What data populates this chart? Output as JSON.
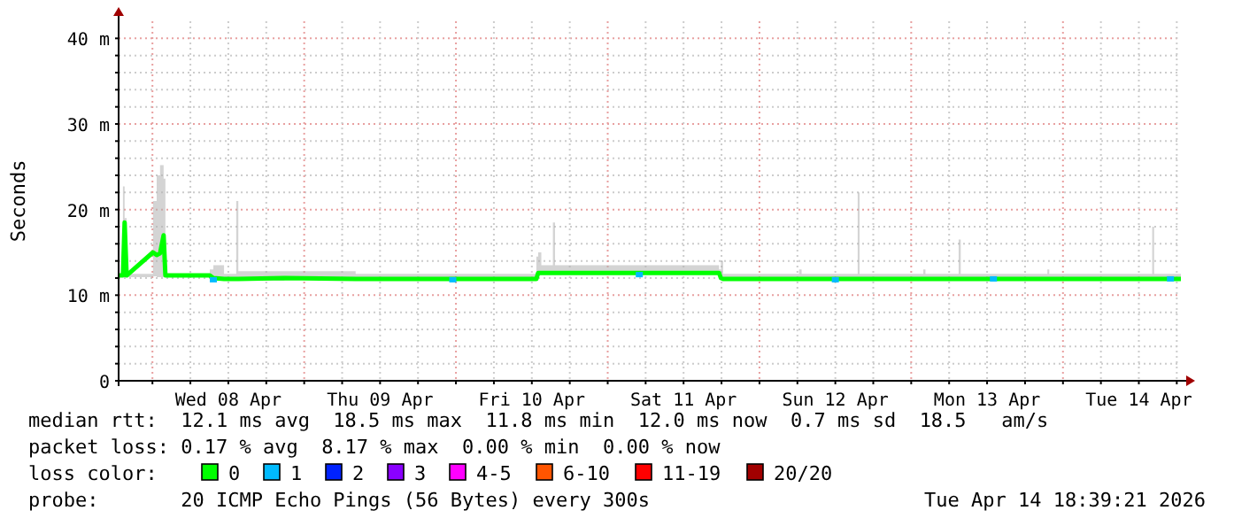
{
  "chart_data": {
    "type": "line",
    "ylabel": "Seconds",
    "legend_title": "loss color:",
    "legend": "bottom",
    "grid": true,
    "xlim": [
      "2026-04-07T18:39",
      "2026-04-14T18:39"
    ],
    "xticks": [
      {
        "value": "2026-04-08T00:00",
        "label": null
      },
      {
        "value": "2026-04-08T06:00",
        "label": null
      },
      {
        "value": "2026-04-08T12:00",
        "label": "Wed 08 Apr"
      },
      {
        "value": "2026-04-08T18:00",
        "label": null
      },
      {
        "value": "2026-04-09T00:00",
        "label": null
      },
      {
        "value": "2026-04-09T06:00",
        "label": null
      },
      {
        "value": "2026-04-09T12:00",
        "label": "Thu 09 Apr"
      },
      {
        "value": "2026-04-09T18:00",
        "label": null
      },
      {
        "value": "2026-04-10T00:00",
        "label": null
      },
      {
        "value": "2026-04-10T06:00",
        "label": null
      },
      {
        "value": "2026-04-10T12:00",
        "label": "Fri 10 Apr"
      },
      {
        "value": "2026-04-10T18:00",
        "label": null
      },
      {
        "value": "2026-04-11T00:00",
        "label": null
      },
      {
        "value": "2026-04-11T06:00",
        "label": null
      },
      {
        "value": "2026-04-11T12:00",
        "label": "Sat 11 Apr"
      },
      {
        "value": "2026-04-11T18:00",
        "label": null
      },
      {
        "value": "2026-04-12T00:00",
        "label": null
      },
      {
        "value": "2026-04-12T06:00",
        "label": null
      },
      {
        "value": "2026-04-12T12:00",
        "label": "Sun 12 Apr"
      },
      {
        "value": "2026-04-12T18:00",
        "label": null
      },
      {
        "value": "2026-04-13T00:00",
        "label": null
      },
      {
        "value": "2026-04-13T06:00",
        "label": null
      },
      {
        "value": "2026-04-13T12:00",
        "label": "Mon 13 Apr"
      },
      {
        "value": "2026-04-13T18:00",
        "label": null
      },
      {
        "value": "2026-04-14T00:00",
        "label": null
      },
      {
        "value": "2026-04-14T06:00",
        "label": null
      },
      {
        "value": "2026-04-14T12:00",
        "label": "Tue 14 Apr"
      },
      {
        "value": "2026-04-14T18:00",
        "label": null
      }
    ],
    "ylim": [
      0,
      42
    ],
    "yticks": [
      0,
      {
        "value": 2,
        "label": null
      },
      {
        "value": 4,
        "label": null
      },
      {
        "value": 6,
        "label": null
      },
      {
        "value": 8,
        "label": null
      },
      {
        "value": 10,
        "label": "10 m"
      },
      {
        "value": 12,
        "label": null
      },
      {
        "value": 14,
        "label": null
      },
      {
        "value": 16,
        "label": null
      },
      {
        "value": 18,
        "label": null
      },
      {
        "value": 20,
        "label": "20 m"
      },
      {
        "value": 22,
        "label": null
      },
      {
        "value": 24,
        "label": null
      },
      {
        "value": 26,
        "label": null
      },
      {
        "value": 28,
        "label": null
      },
      {
        "value": 30,
        "label": "30 m"
      },
      {
        "value": 32,
        "label": null
      },
      {
        "value": 34,
        "label": null
      },
      {
        "value": 36,
        "label": null
      },
      {
        "value": 38,
        "label": null
      },
      {
        "value": 40,
        "label": "40 m"
      }
    ],
    "series": [
      {
        "name": "0",
        "color": "#00ff00",
        "x": [
          "2026-04-07T18:45",
          "2026-04-07T19:20",
          "2026-04-07T19:36",
          "2026-04-07T19:55",
          "2026-04-08T00:05",
          "2026-04-08T00:40",
          "2026-04-08T01:12",
          "2026-04-08T01:46",
          "2026-04-08T02:03",
          "2026-04-08T09:04",
          "2026-04-08T09:38",
          "2026-04-08T11:19",
          "2026-04-08T13:15",
          "2026-04-08T13:35",
          "2026-04-08T20:52",
          "2026-04-09T08:08",
          "2026-04-10T00:56",
          "2026-04-10T12:43",
          "2026-04-10T13:00",
          "2026-04-10T13:30",
          "2026-04-10T15:20",
          "2026-04-10T15:40",
          "2026-04-11T10:36",
          "2026-04-11T17:37",
          "2026-04-11T17:54",
          "2026-04-11T18:15",
          "2026-04-12T06:16",
          "2026-04-12T06:40",
          "2026-04-12T15:32",
          "2026-04-12T15:50",
          "2026-04-13T01:55",
          "2026-04-13T02:15",
          "2026-04-13T07:30",
          "2026-04-13T07:50",
          "2026-04-13T21:32",
          "2026-04-13T21:50",
          "2026-04-14T05:57",
          "2026-04-14T14:07",
          "2026-04-14T14:25",
          "2026-04-14T18:39"
        ],
        "values": [
          12.3,
          12.3,
          18.5,
          12.3,
          15,
          14.7,
          14.9,
          17,
          12.3,
          12.3,
          12,
          11.9,
          11.9,
          11.9,
          12,
          11.9,
          11.9,
          11.9,
          12.6,
          12.6,
          12.6,
          12.6,
          12.6,
          12.6,
          12,
          11.9,
          11.9,
          11.9,
          11.9,
          11.9,
          11.9,
          11.9,
          11.9,
          11.9,
          11.9,
          11.9,
          11.9,
          11.9,
          11.9,
          11.9
        ],
        "lower": [
          12.1,
          12.1,
          12.1,
          12.1,
          12.2,
          12.1,
          12.1,
          12.1,
          12.1,
          12.1,
          11.8,
          11.7,
          11.7,
          11.7,
          11.8,
          11.7,
          11.7,
          11.7,
          12.4,
          12.4,
          12.4,
          12.4,
          12.4,
          12.4,
          11.8,
          11.7,
          11.7,
          11.7,
          11.7,
          11.7,
          11.7,
          11.7,
          11.7,
          11.7,
          11.7,
          11.7,
          11.7,
          11.7,
          11.7,
          11.7
        ],
        "upper": [
          12.3,
          22.7,
          19,
          12.5,
          21,
          24,
          25.2,
          23.6,
          12.5,
          13,
          13.5,
          12.5,
          21,
          12.8,
          12.8,
          12.5,
          12.5,
          14.5,
          15,
          13.5,
          18.5,
          13.5,
          13.5,
          13,
          14,
          12.5,
          13,
          12.5,
          22,
          12.5,
          13,
          12.5,
          16.5,
          12.5,
          13,
          12.5,
          12.5,
          18,
          12.5,
          12.5
        ]
      },
      {
        "name": "1",
        "type": "scatter",
        "color": "#00bbff",
        "x": [
          "2026-04-08T09:38",
          "2026-04-09T23:30",
          "2026-04-11T05:00",
          "2026-04-12T12:00",
          "2026-04-13T13:00",
          "2026-04-14T17:00"
        ],
        "values": [
          11.8,
          11.8,
          12.4,
          11.8,
          11.9,
          11.9
        ]
      },
      {
        "name": "2",
        "type": "scatter",
        "color": "#0022ff"
      },
      {
        "name": "3",
        "type": "scatter",
        "color": "#8a00ff"
      },
      {
        "name": "4-5",
        "type": "scatter",
        "color": "#ff00ff"
      },
      {
        "name": "6-10",
        "type": "scatter",
        "color": "#ff5500"
      },
      {
        "name": "11-19",
        "type": "scatter",
        "color": "#ff0000"
      },
      {
        "name": "20/20",
        "type": "scatter",
        "color": "#a10000"
      }
    ],
    "annotations": [
      "median rtt:  12.1 ms avg  18.5 ms max  11.8 ms min  12.0 ms now  0.7 ms sd  18.5   am/s",
      "packet loss: 0.17 % avg  8.17 % max  0.00 % min  0.00 % now",
      "probe:       20 ICMP Echo Pings (56 Bytes) every 300s",
      "Tue Apr 14 18:39:21 2026"
    ]
  }
}
